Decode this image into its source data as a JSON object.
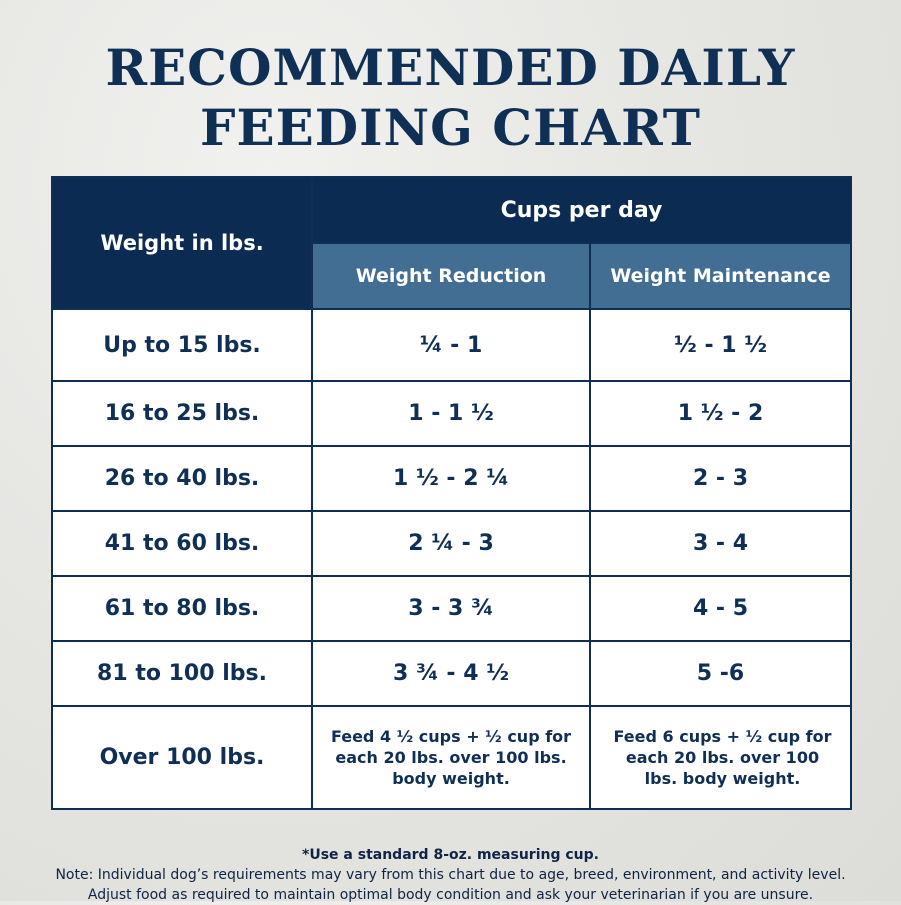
{
  "title": {
    "line1": "RECOMMENDED DAILY",
    "line2": "FEEDING CHART"
  },
  "table": {
    "weight_header": "Weight in lbs.",
    "cups_header": "Cups per day",
    "reduction_header": "Weight Reduction",
    "maintenance_header": "Weight Maintenance",
    "rows": [
      {
        "weight": "Up to 15 lbs.",
        "reduction": "¼ - 1",
        "maintenance": "½ - 1 ½"
      },
      {
        "weight": "16 to 25 lbs.",
        "reduction": "1 - 1 ½",
        "maintenance": "1 ½ - 2"
      },
      {
        "weight": "26 to 40 lbs.",
        "reduction": "1 ½ - 2 ¼",
        "maintenance": "2 - 3"
      },
      {
        "weight": "41 to 60 lbs.",
        "reduction": "2 ¼ - 3",
        "maintenance": "3 - 4"
      },
      {
        "weight": "61 to 80 lbs.",
        "reduction": "3 - 3 ¾",
        "maintenance": "4 - 5"
      },
      {
        "weight": "81 to 100 lbs.",
        "reduction": "3 ¾ - 4 ½",
        "maintenance": "5 -6"
      },
      {
        "weight": "Over 100 lbs.",
        "reduction": "Feed 4 ½ cups + ½ cup for each 20 lbs. over 100 lbs. body weight.",
        "maintenance": "Feed 6 cups + ½ cup for each 20 lbs. over 100 lbs. body weight."
      }
    ]
  },
  "footer": {
    "measuring_note": "*Use a standard 8-oz. measuring cup.",
    "note_line1": "Note: Individual dog’s requirements may vary from this chart due to age, breed, environment, and activity level.",
    "note_line2": "Adjust food as required to maintain optimal body condition and ask your veterinarian if you are unsure."
  },
  "colors": {
    "navy": "#0b2b52",
    "steel_blue": "#426e94",
    "text_navy": "#102f55"
  }
}
